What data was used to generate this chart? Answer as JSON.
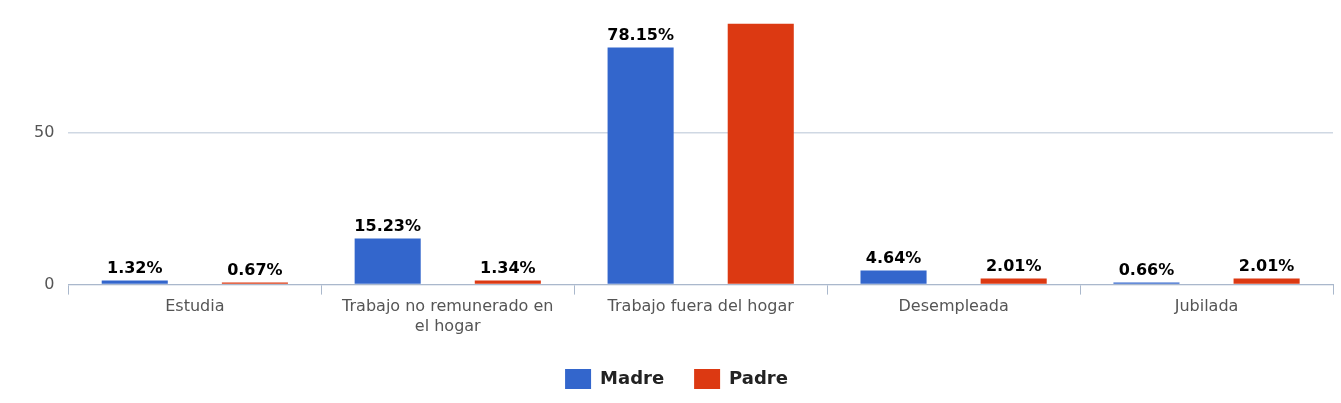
{
  "chart_data": {
    "type": "bar",
    "categories": [
      "Estudia",
      "Trabajo no remunerado en el hogar",
      "Trabajo fuera del hogar",
      "Desempleada",
      "Jubilada"
    ],
    "series": [
      {
        "name": "Madre",
        "color": "#3366cc",
        "values": [
          1.32,
          15.23,
          78.15,
          4.64,
          0.66
        ],
        "value_labels": [
          "1.32%",
          "15.23%",
          "78.15%",
          "4.64%",
          "0.66%"
        ]
      },
      {
        "name": "Padre",
        "color": "#dc3912",
        "values": [
          0.67,
          1.34,
          86,
          2.01,
          2.01
        ],
        "value_labels": [
          "0.67%",
          "1.34%",
          null,
          "2.01%",
          "2.01%"
        ]
      }
    ],
    "ylim": [
      0,
      86
    ],
    "yticks": [
      0,
      50
    ],
    "grid": "y",
    "legend": "bottom"
  }
}
